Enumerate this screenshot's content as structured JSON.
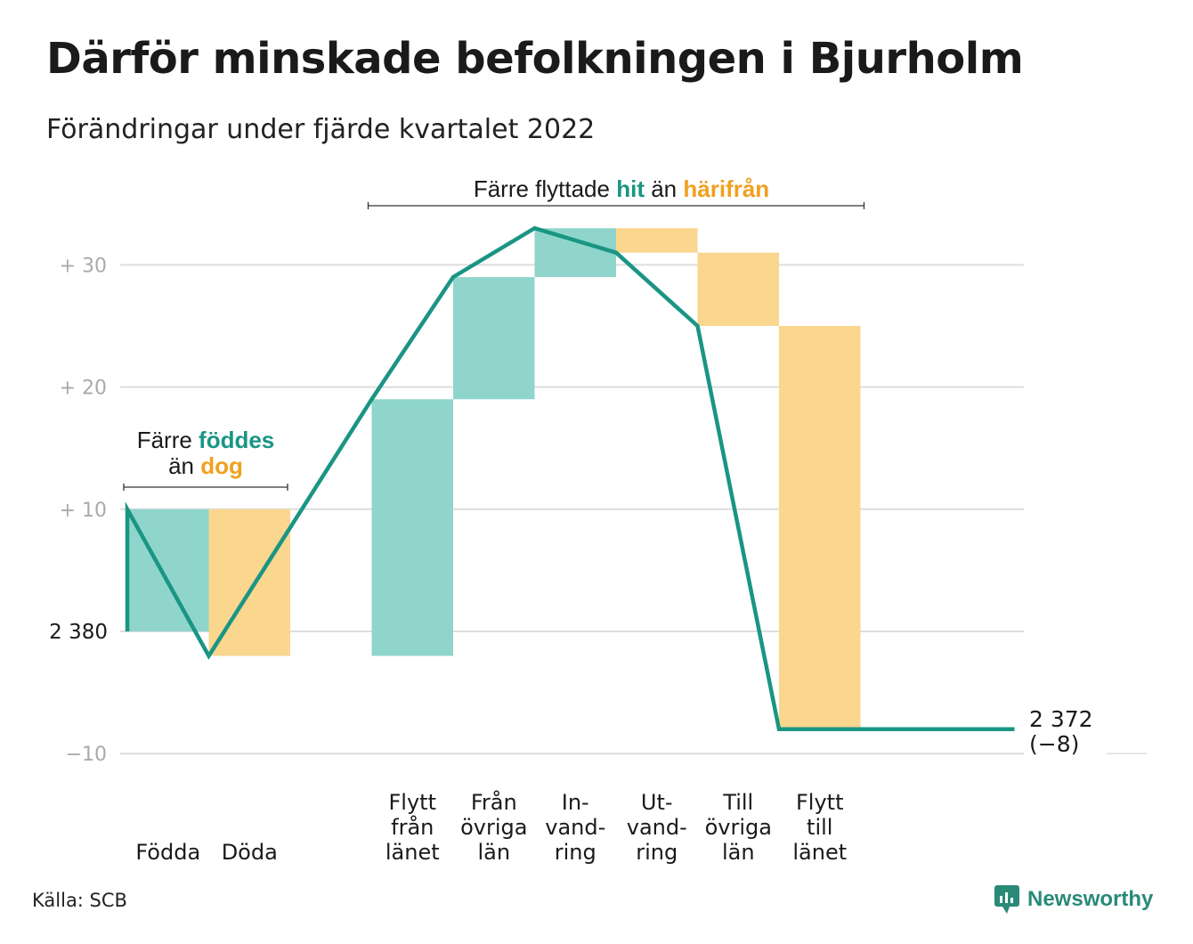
{
  "title": "Därför minskade befolkningen i Bjurholm",
  "subtitle": "Förändringar under fjärde kvartalet 2022",
  "source": "Källa: SCB",
  "brand": "Newsworthy",
  "colors": {
    "increase": "#8fd5cc",
    "decrease": "#fad68e",
    "line": "#1a9584",
    "accent_teal": "#1a9584",
    "accent_orange": "#f0a020",
    "grid": "#dddddd",
    "tick": "#aaaaaa"
  },
  "chart_data": {
    "type": "bar",
    "subtype": "waterfall",
    "start_value": 0,
    "start_label": "2 380",
    "end_label": "2 372",
    "end_change_label": "(−8)",
    "y_ticks": [
      {
        "value": -10,
        "label": "−10"
      },
      {
        "value": 10,
        "label": "+ 10"
      },
      {
        "value": 20,
        "label": "+ 20"
      },
      {
        "value": 30,
        "label": "+ 30"
      }
    ],
    "ylim": [
      -10,
      33
    ],
    "grid": true,
    "steps": [
      {
        "category": [
          "Födda"
        ],
        "change": 10
      },
      {
        "category": [
          "Döda"
        ],
        "change": -12
      },
      {
        "category": [
          ""
        ],
        "change": 0
      },
      {
        "category": [
          "Flytt",
          "från",
          "länet"
        ],
        "change": 21
      },
      {
        "category": [
          "Från",
          "övriga",
          "län"
        ],
        "change": 10
      },
      {
        "category": [
          "In-",
          "vand-",
          "ring"
        ],
        "change": 4
      },
      {
        "category": [
          "Ut-",
          "vand-",
          "ring"
        ],
        "change": -2
      },
      {
        "category": [
          "Till",
          "övriga",
          "län"
        ],
        "change": -6
      },
      {
        "category": [
          "Flytt",
          "till",
          "länet"
        ],
        "change": -33
      },
      {
        "category": [
          ""
        ],
        "change": 0
      },
      {
        "category": [
          ""
        ],
        "change": 0
      }
    ],
    "annotations": [
      {
        "text_parts": [
          [
            "Färre ",
            "plain"
          ],
          [
            "föddes",
            "teal"
          ]
        ],
        "text_parts2": [
          [
            "än ",
            "plain"
          ],
          [
            "dog",
            "orange"
          ]
        ],
        "span": [
          0,
          1
        ]
      },
      {
        "text_parts": [
          [
            "Färre flyttade ",
            "plain"
          ],
          [
            "hit",
            "teal"
          ],
          [
            " än ",
            "plain"
          ],
          [
            "härifrån",
            "orange"
          ]
        ],
        "span": [
          3,
          8
        ]
      }
    ]
  }
}
